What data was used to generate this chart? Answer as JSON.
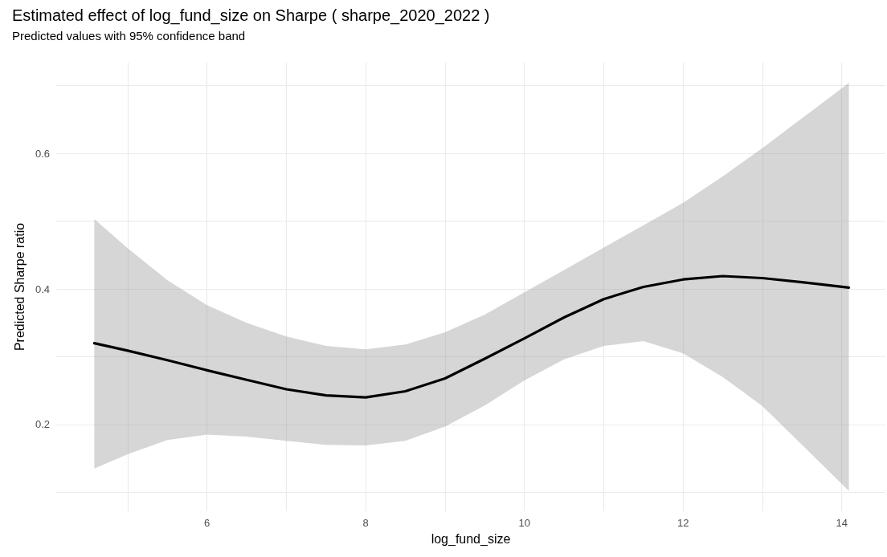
{
  "chart_data": {
    "type": "line",
    "title": "Estimated effect of log_fund_size on Sharpe ( sharpe_2020_2022 )",
    "subtitle": "Predicted values with 95% confidence band",
    "xlabel": "log_fund_size",
    "ylabel": "Predicted Sharpe ratio",
    "x": [
      4.58,
      5.0,
      5.5,
      6.0,
      6.5,
      7.0,
      7.5,
      8.0,
      8.5,
      9.0,
      9.5,
      10.0,
      10.5,
      11.0,
      11.5,
      12.0,
      12.5,
      13.0,
      13.5,
      14.09
    ],
    "series": [
      {
        "color": "#000000",
        "values": [
          0.32,
          0.309,
          0.295,
          0.28,
          0.266,
          0.252,
          0.243,
          0.24,
          0.249,
          0.268,
          0.297,
          0.327,
          0.358,
          0.385,
          0.403,
          0.414,
          0.419,
          0.416,
          0.41,
          0.402
        ],
        "upper": [
          0.503,
          0.46,
          0.413,
          0.376,
          0.35,
          0.33,
          0.316,
          0.311,
          0.318,
          0.336,
          0.362,
          0.395,
          0.428,
          0.461,
          0.494,
          0.527,
          0.566,
          0.608,
          0.652,
          0.704
        ],
        "lower": [
          0.135,
          0.156,
          0.177,
          0.185,
          0.182,
          0.176,
          0.17,
          0.169,
          0.176,
          0.197,
          0.228,
          0.265,
          0.296,
          0.316,
          0.323,
          0.305,
          0.27,
          0.227,
          0.17,
          0.102
        ]
      }
    ],
    "xlim": [
      4.1,
      14.55
    ],
    "ylim": [
      0.072,
      0.734
    ],
    "xticks": [
      {
        "value": 5,
        "label": null
      },
      6,
      {
        "value": 7,
        "label": null
      },
      8,
      {
        "value": 9,
        "label": null
      },
      10,
      {
        "value": 11,
        "label": null
      },
      12,
      {
        "value": 13,
        "label": null
      },
      14
    ],
    "yticks": [
      {
        "value": 0.1,
        "label": null
      },
      0.2,
      {
        "value": 0.3,
        "label": null
      },
      0.4,
      {
        "value": 0.5,
        "label": null
      },
      0.6,
      {
        "value": 0.7,
        "label": null
      }
    ],
    "grid": true,
    "marker": "none",
    "line_style": "solid"
  }
}
